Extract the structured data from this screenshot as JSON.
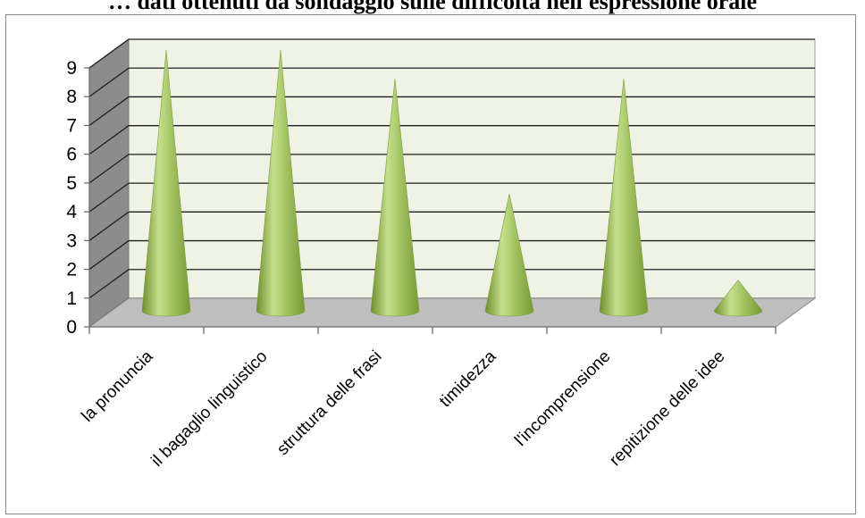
{
  "header_text": "… dati ottenuti da sondaggio sulle difficoltà nell'espressione orale",
  "chart_data": {
    "type": "bar",
    "bar_shape": "cone",
    "title": "",
    "xlabel": "",
    "ylabel": "",
    "categories": [
      "la pronuncia",
      "il bagaglio linguistico",
      "struttura delle frasi",
      "timidezza",
      "l'incomprensione",
      "repitizione delle idee"
    ],
    "values": [
      9,
      9,
      8,
      4,
      8,
      1
    ],
    "ylim": [
      0,
      9
    ],
    "yticks": [
      "0",
      "1",
      "2",
      "3",
      "4",
      "5",
      "6",
      "7",
      "8",
      "9"
    ],
    "grid": true,
    "legend": "none",
    "colors": {
      "cone": "#9bbb59",
      "wall": "#eef3e6",
      "floor": "#bfbfbf",
      "side_wall": "#8c8c8c"
    }
  }
}
